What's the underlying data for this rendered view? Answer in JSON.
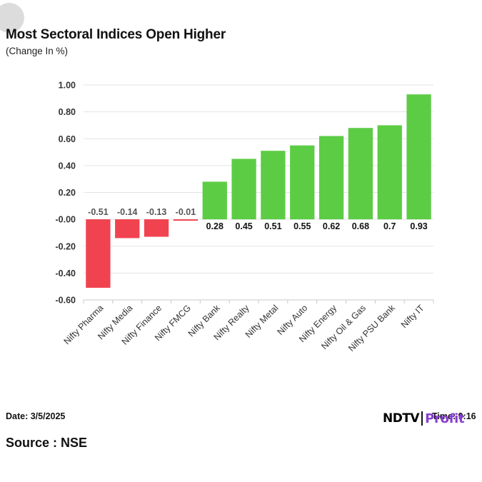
{
  "header": {
    "title": "Most Sectoral Indices Open Higher",
    "subtitle": "(Change In %)"
  },
  "footer": {
    "date": "Date: 3/5/2025",
    "time": "Time: 9:16",
    "source": "Source : NSE"
  },
  "brand": {
    "name": "NDTV",
    "sub": "Profit"
  },
  "colors": {
    "positive": "#5ccc45",
    "negative": "#f1434f",
    "grid": "#e3e3e3",
    "axis_text": "#333333"
  },
  "chart_data": {
    "type": "bar",
    "categories": [
      "Nifty Pharma",
      "Nifty Media",
      "Nifty Finance",
      "Nifty FMCG",
      "Nifty Bank",
      "Nifty Realty",
      "Nifty Metal",
      "Nifty Auto",
      "Nifty Energy",
      "Nifty Oil & Gas",
      "Nifty PSU Bank",
      "Nifty IT"
    ],
    "values": [
      -0.51,
      -0.14,
      -0.13,
      -0.01,
      0.28,
      0.45,
      0.51,
      0.55,
      0.62,
      0.68,
      0.7,
      0.93
    ],
    "data_labels": [
      "-0.51",
      "-0.14",
      "-0.13",
      "-0.01",
      "0.28",
      "0.45",
      "0.51",
      "0.55",
      "0.62",
      "0.68",
      "0.7",
      "0.93"
    ],
    "yticks": [
      "1.00",
      "0.80",
      "0.60",
      "0.40",
      "0.20",
      "-0.00",
      "-0.20",
      "-0.40",
      "-0.60"
    ],
    "ytick_values": [
      1.0,
      0.8,
      0.6,
      0.4,
      0.2,
      0.0,
      -0.2,
      -0.4,
      -0.6
    ],
    "ylim": [
      -0.6,
      1.0
    ],
    "grid": true,
    "legend": "none"
  }
}
